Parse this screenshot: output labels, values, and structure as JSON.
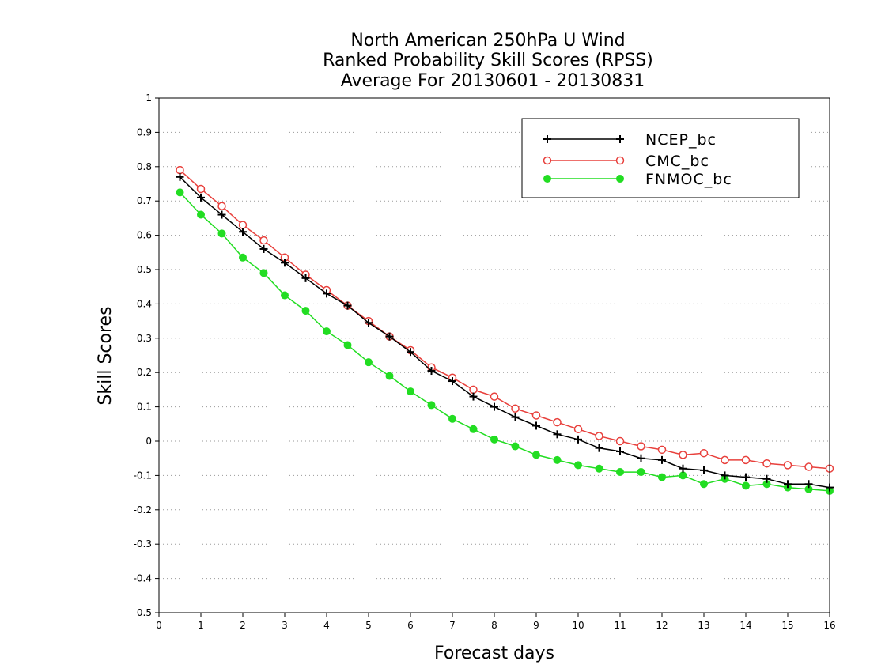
{
  "chart_data": {
    "type": "line",
    "title_lines": [
      "North American 250hPa U Wind",
      "Ranked Probability Skill Scores (RPSS)",
      "Average For 20130601 - 20130831"
    ],
    "xlabel": "Forecast days",
    "ylabel": "Skill Scores",
    "xlim": [
      0,
      16
    ],
    "ylim": [
      -0.5,
      1
    ],
    "xticks": [
      "0",
      "1",
      "2",
      "3",
      "4",
      "5",
      "6",
      "7",
      "8",
      "9",
      "10",
      "11",
      "12",
      "13",
      "14",
      "15",
      "16"
    ],
    "yticks": [
      "1",
      "0.9",
      "0.8",
      "0.7",
      "0.6",
      "0.5",
      "0.4",
      "0.3",
      "0.2",
      "0.1",
      "0",
      "-0.1",
      "-0.2",
      "-0.3",
      "-0.4",
      "-0.5"
    ],
    "grid": "horizontal dotted",
    "legend_position": "top-right",
    "x": [
      0.5,
      1,
      1.5,
      2,
      2.5,
      3,
      3.5,
      4,
      4.5,
      5,
      5.5,
      6,
      6.5,
      7,
      7.5,
      8,
      8.5,
      9,
      9.5,
      10,
      10.5,
      11,
      11.5,
      12,
      12.5,
      13,
      13.5,
      14,
      14.5,
      15,
      15.5,
      16
    ],
    "series": [
      {
        "name": "NCEP_bc",
        "color": "#000000",
        "marker": "plus",
        "values": [
          0.77,
          0.71,
          0.66,
          0.61,
          0.56,
          0.52,
          0.475,
          0.43,
          0.395,
          0.345,
          0.305,
          0.26,
          0.205,
          0.175,
          0.13,
          0.1,
          0.07,
          0.045,
          0.02,
          0.005,
          -0.02,
          -0.03,
          -0.05,
          -0.055,
          -0.08,
          -0.085,
          -0.1,
          -0.105,
          -0.11,
          -0.125,
          -0.125,
          -0.135
        ]
      },
      {
        "name": "CMC_bc",
        "color": "#e8403c",
        "marker": "open-circle",
        "values": [
          0.79,
          0.735,
          0.685,
          0.63,
          0.585,
          0.535,
          0.485,
          0.44,
          0.395,
          0.35,
          0.305,
          0.265,
          0.215,
          0.185,
          0.15,
          0.13,
          0.095,
          0.075,
          0.055,
          0.035,
          0.015,
          0.0,
          -0.015,
          -0.025,
          -0.04,
          -0.035,
          -0.055,
          -0.055,
          -0.065,
          -0.07,
          -0.075,
          -0.08
        ]
      },
      {
        "name": "FNMOC_bc",
        "color": "#22dd22",
        "marker": "filled-circle",
        "values": [
          0.725,
          0.66,
          0.605,
          0.535,
          0.49,
          0.425,
          0.38,
          0.32,
          0.28,
          0.23,
          0.19,
          0.145,
          0.105,
          0.065,
          0.035,
          0.005,
          -0.015,
          -0.04,
          -0.055,
          -0.07,
          -0.08,
          -0.09,
          -0.09,
          -0.105,
          -0.1,
          -0.125,
          -0.11,
          -0.13,
          -0.125,
          -0.135,
          -0.14,
          -0.145
        ]
      }
    ]
  }
}
